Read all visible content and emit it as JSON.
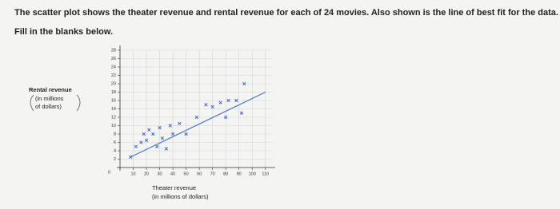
{
  "question": {
    "intro": "The scatter plot shows the theater revenue and rental revenue for each of 24 movies. Also shown is the line of best fit for the data.",
    "instruction": "Fill in the blanks below."
  },
  "chart_data": {
    "type": "scatter",
    "y_label_lines": [
      "Rental revenue",
      "(in millions",
      "of dollars)"
    ],
    "x_label_lines": [
      "Theater revenue",
      "(in millions of dollars)"
    ],
    "x": [
      8,
      12,
      16,
      18,
      20,
      22,
      25,
      28,
      30,
      32,
      35,
      38,
      40,
      45,
      50,
      58,
      65,
      70,
      76,
      80,
      82,
      88,
      92,
      94
    ],
    "values": [
      2.5,
      5,
      6,
      8,
      6.5,
      9,
      8,
      5,
      9.5,
      7,
      4.5,
      10,
      8,
      10.5,
      8,
      12,
      15,
      14.5,
      15.5,
      12,
      16,
      16,
      13,
      20
    ],
    "color": "#3b5fc4",
    "fit_line": {
      "x": [
        8,
        110
      ],
      "y": [
        2.5,
        18
      ],
      "color": "#4a78c8"
    },
    "xlim": [
      0,
      115
    ],
    "ylim": [
      0,
      28
    ],
    "xticks": [
      10,
      20,
      30,
      40,
      50,
      60,
      70,
      80,
      90,
      100,
      110
    ],
    "yticks": [
      0,
      2,
      4,
      6,
      8,
      10,
      12,
      14,
      16,
      18,
      20,
      22,
      24,
      26,
      28
    ],
    "grid": true
  }
}
